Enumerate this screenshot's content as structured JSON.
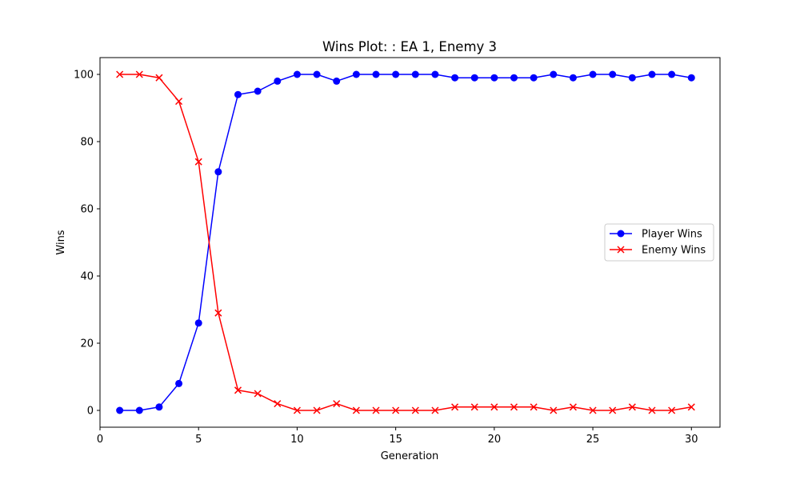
{
  "chart_data": {
    "type": "line",
    "title": "Wins Plot: : EA 1, Enemy 3",
    "xlabel": "Generation",
    "ylabel": "Wins",
    "xlim": [
      0,
      31.45
    ],
    "ylim": [
      -5,
      105
    ],
    "xticks": [
      0,
      5,
      10,
      15,
      20,
      25,
      30
    ],
    "yticks": [
      0,
      20,
      40,
      60,
      80,
      100
    ],
    "grid": false,
    "legend_position": "center-right",
    "x": [
      1,
      2,
      3,
      4,
      5,
      6,
      7,
      8,
      9,
      10,
      11,
      12,
      13,
      14,
      15,
      16,
      17,
      18,
      19,
      20,
      21,
      22,
      23,
      24,
      25,
      26,
      27,
      28,
      29,
      30
    ],
    "series": [
      {
        "name": "Player Wins",
        "color": "#0000ff",
        "marker": "circle",
        "values": [
          0,
          0,
          1,
          8,
          26,
          71,
          94,
          95,
          98,
          100,
          100,
          98,
          100,
          100,
          100,
          100,
          100,
          99,
          99,
          99,
          99,
          99,
          100,
          99,
          100,
          100,
          99,
          100,
          100,
          99
        ]
      },
      {
        "name": "Enemy Wins",
        "color": "#ff0000",
        "marker": "x",
        "values": [
          100,
          100,
          99,
          92,
          74,
          29,
          6,
          5,
          2,
          0,
          0,
          2,
          0,
          0,
          0,
          0,
          0,
          1,
          1,
          1,
          1,
          1,
          0,
          1,
          0,
          0,
          1,
          0,
          0,
          1
        ]
      }
    ]
  }
}
